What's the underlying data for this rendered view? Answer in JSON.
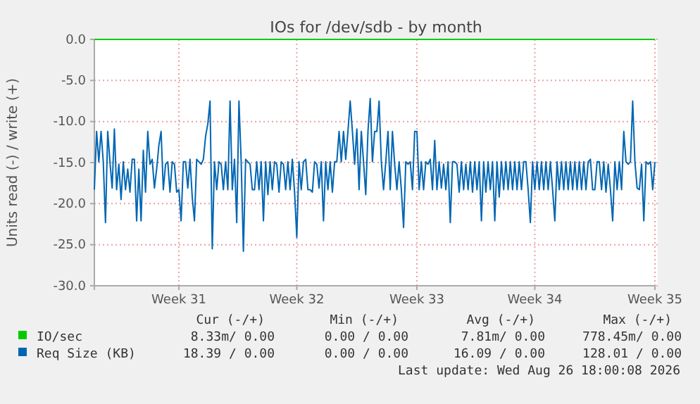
{
  "chart_data": {
    "type": "line",
    "title": "IOs for /dev/sdb - by month",
    "ylabel": "Units read (-) / write (+)",
    "ylim": [
      -30,
      0
    ],
    "yticks": [
      {
        "value": -30,
        "label": "-30.0"
      },
      {
        "value": -25,
        "label": "-25.0"
      },
      {
        "value": -20,
        "label": "-20.0"
      },
      {
        "value": -15,
        "label": "-15.0"
      },
      {
        "value": -10,
        "label": "-10.0"
      },
      {
        "value": -5,
        "label": "-5.0"
      },
      {
        "value": 0,
        "label": "0.0"
      }
    ],
    "grid": true,
    "legend": "bottom",
    "categories": [
      null,
      null,
      null,
      null,
      null,
      null,
      null,
      null,
      null,
      null,
      null,
      null,
      null,
      null,
      null,
      null,
      null,
      null,
      null,
      null,
      null,
      null,
      null,
      null,
      null,
      null,
      null,
      null,
      null,
      null,
      null,
      null,
      null,
      null,
      null,
      null,
      null,
      null,
      "Week 31",
      null,
      null,
      null,
      null,
      null,
      null,
      null,
      null,
      null,
      null,
      null,
      null,
      null,
      null,
      null,
      null,
      null,
      null,
      null,
      null,
      null,
      null,
      null,
      null,
      null,
      null,
      null,
      null,
      null,
      null,
      null,
      null,
      null,
      null,
      null,
      null,
      null,
      null,
      null,
      null,
      null,
      null,
      null,
      null,
      null,
      null,
      null,
      null,
      null,
      null,
      null,
      null,
      "Week 32",
      null,
      null,
      null,
      null,
      null,
      null,
      null,
      null,
      null,
      null,
      null,
      null,
      null,
      null,
      null,
      null,
      null,
      null,
      null,
      null,
      null,
      null,
      null,
      null,
      null,
      null,
      null,
      null,
      null,
      null,
      null,
      null,
      null,
      null,
      null,
      null,
      null,
      null,
      null,
      null,
      null,
      null,
      null,
      null,
      null,
      null,
      null,
      null,
      null,
      null,
      null,
      null,
      null,
      "Week 33",
      null,
      null,
      null,
      null,
      null,
      null,
      null,
      null,
      null,
      null,
      null,
      null,
      null,
      null,
      null,
      null,
      null,
      null,
      null,
      null,
      null,
      null,
      null,
      null,
      null,
      null,
      null,
      null,
      null,
      null,
      null,
      null,
      null,
      null,
      null,
      null,
      null,
      null,
      null,
      null,
      null,
      null,
      null,
      null,
      null,
      null,
      null,
      null,
      null,
      null,
      null,
      null,
      "Week 34",
      null,
      null,
      null,
      null,
      null,
      null,
      null,
      null,
      null,
      null,
      null,
      null,
      null,
      null,
      null,
      null,
      null,
      null,
      null,
      null,
      null,
      null,
      null,
      null,
      null,
      null,
      null,
      null,
      null,
      null,
      null,
      null,
      null,
      null,
      null,
      null,
      null,
      null,
      null,
      null,
      null,
      null,
      null,
      null,
      null,
      null,
      null,
      null,
      null,
      null,
      null,
      null,
      null,
      "Week 35"
    ],
    "series": [
      {
        "name": "IO/sec",
        "color": "#00cc00",
        "values": [
          0,
          0,
          0,
          0,
          0,
          0,
          0,
          0,
          0,
          0,
          0,
          0,
          0,
          0,
          0,
          0,
          0,
          0,
          0,
          0,
          0,
          0,
          0,
          0,
          0,
          0,
          0,
          0,
          0,
          0,
          0,
          0,
          0,
          0,
          0,
          0,
          0,
          0,
          0,
          0,
          0,
          0,
          0,
          0,
          0,
          0,
          0,
          0,
          0,
          0,
          0,
          0,
          0,
          0,
          0,
          0,
          0,
          0,
          0,
          0,
          0,
          0,
          0,
          0,
          0,
          0,
          0,
          0,
          0,
          0,
          0,
          0,
          0,
          0,
          0,
          0,
          0,
          0,
          0,
          0,
          0,
          0,
          0,
          0,
          0,
          0,
          0,
          0,
          0,
          0,
          0,
          0,
          0,
          0,
          0,
          0,
          0,
          0,
          0,
          0,
          0,
          0,
          0,
          0,
          0,
          0,
          0,
          0,
          0,
          0,
          0,
          0,
          0,
          0,
          0,
          0,
          0,
          0,
          0,
          0,
          0,
          0,
          0,
          0,
          0,
          0,
          0,
          0,
          0,
          0,
          0,
          0,
          0,
          0,
          0,
          0,
          0,
          0,
          0,
          0,
          0,
          0,
          0,
          0,
          0,
          0,
          0,
          0,
          0,
          0,
          0,
          0,
          0,
          0,
          0,
          0,
          0,
          0,
          0,
          0,
          0,
          0,
          0,
          0,
          0,
          0,
          0,
          0,
          0,
          0,
          0,
          0,
          0,
          0,
          0,
          0,
          0,
          0,
          0,
          0,
          0,
          0,
          0,
          0,
          0,
          0,
          0,
          0,
          0,
          0,
          0,
          0,
          0,
          0,
          0,
          0,
          0,
          0,
          0,
          0,
          0,
          0,
          0,
          0,
          0,
          0,
          0,
          0,
          0,
          0,
          0,
          0,
          0,
          0,
          0,
          0,
          0,
          0,
          0,
          0,
          0,
          0,
          0,
          0,
          0,
          0,
          0,
          0,
          0,
          0,
          0,
          0,
          0,
          0,
          0,
          0,
          0,
          0,
          0,
          0,
          0,
          0,
          0,
          0,
          0,
          0,
          0,
          0,
          0,
          0,
          0,
          0,
          0
        ]
      },
      {
        "name": "Req Size (KB)",
        "color": "#0066b3",
        "values": [
          -18.3,
          -11.2,
          -14.9,
          -11.2,
          -14.9,
          -22.3,
          -11.2,
          -14.9,
          -18.1,
          -10.9,
          -18.3,
          -15.2,
          -19.5,
          -14.9,
          -18.3,
          -15.8,
          -18.6,
          -14.6,
          -14.6,
          -22.1,
          -15.8,
          -22.1,
          -13.5,
          -18.6,
          -11.2,
          -15.2,
          -14.6,
          -18.1,
          -15.8,
          -12.9,
          -11.2,
          -18.3,
          -15.2,
          -14.9,
          -18.6,
          -14.9,
          -15.2,
          -18.6,
          -18.3,
          -22.1,
          -14.9,
          -14.9,
          -18.1,
          -14.6,
          -19.2,
          -22.1,
          -14.6,
          -14.9,
          -15.2,
          -14.6,
          -11.8,
          -10.3,
          -7.5,
          -25.5,
          -14.9,
          -18.3,
          -14.9,
          -15.2,
          -18.3,
          -14.9,
          -18.3,
          -7.5,
          -18.3,
          -14.6,
          -22.3,
          -7.5,
          -14.9,
          -25.8,
          -14.6,
          -14.9,
          -15.2,
          -18.3,
          -18.3,
          -14.9,
          -18.3,
          -14.9,
          -22.1,
          -14.9,
          -18.9,
          -14.9,
          -18.3,
          -14.9,
          -15.2,
          -18.6,
          -14.9,
          -15.2,
          -18.3,
          -14.9,
          -18.3,
          -14.6,
          -18.6,
          -24.1,
          -14.9,
          -18.3,
          -14.9,
          -14.6,
          -18.3,
          -18.3,
          -18.6,
          -14.9,
          -15.2,
          -18.1,
          -14.9,
          -22.1,
          -14.9,
          -18.3,
          -14.9,
          -18.6,
          -14.9,
          -14.9,
          -11.2,
          -14.9,
          -11.2,
          -14.6,
          -11.2,
          -7.5,
          -11.2,
          -15.2,
          -10.9,
          -18.3,
          -11.2,
          -14.9,
          -18.9,
          -11.2,
          -7.2,
          -14.9,
          -11.2,
          -11.2,
          -7.5,
          -14.9,
          -18.3,
          -14.9,
          -11.2,
          -18.3,
          -11.2,
          -15.2,
          -18.3,
          -14.9,
          -18.3,
          -22.9,
          -14.9,
          -15.2,
          -14.9,
          -18.3,
          -11.2,
          -11.2,
          -18.3,
          -14.9,
          -18.3,
          -14.9,
          -15.2,
          -14.6,
          -18.3,
          -12.3,
          -18.3,
          -14.9,
          -18.1,
          -15.2,
          -18.3,
          -14.9,
          -22.3,
          -14.9,
          -14.9,
          -15.2,
          -18.6,
          -14.9,
          -18.3,
          -15.2,
          -18.3,
          -14.9,
          -18.6,
          -14.9,
          -18.3,
          -14.9,
          -22.1,
          -14.9,
          -18.6,
          -14.9,
          -18.3,
          -14.9,
          -22.1,
          -14.9,
          -19.2,
          -14.9,
          -18.3,
          -14.9,
          -18.3,
          -14.9,
          -18.3,
          -14.9,
          -18.3,
          -14.9,
          -18.3,
          -14.9,
          -14.9,
          -18.3,
          -22.3,
          -14.9,
          -18.3,
          -14.9,
          -18.3,
          -14.9,
          -18.3,
          -14.9,
          -18.3,
          -14.9,
          -18.3,
          -22.1,
          -14.9,
          -18.3,
          -14.9,
          -18.3,
          -14.9,
          -18.3,
          -14.9,
          -18.3,
          -14.9,
          -18.3,
          -14.9,
          -18.3,
          -14.9,
          -18.3,
          -14.9,
          -14.6,
          -18.3,
          -18.3,
          -14.9,
          -14.9,
          -18.3,
          -14.9,
          -18.6,
          -15.2,
          -18.3,
          -22.1,
          -14.9,
          -18.3,
          -14.9,
          -18.3,
          -11.2,
          -14.9,
          -15.2,
          -14.9,
          -7.5,
          -14.9,
          -18.1,
          -18.3,
          -15.2,
          -22.1,
          -14.9,
          -15.2,
          -14.9,
          -18.3,
          -14.9
        ]
      }
    ],
    "annotations": [
      "Cur (-/+)",
      "Min (-/+)",
      "Avg (-/+)",
      "Max (-/+)",
      "8.33m/ 0.00",
      "0.00 / 0.00",
      "7.81m/ 0.00",
      "778.45m/ 0.00",
      "18.39 / 0.00",
      "0.00 / 0.00",
      "16.09 / 0.00",
      "128.01 / 0.00",
      "Last update: Wed Aug 26 18:00:08 2026"
    ]
  }
}
